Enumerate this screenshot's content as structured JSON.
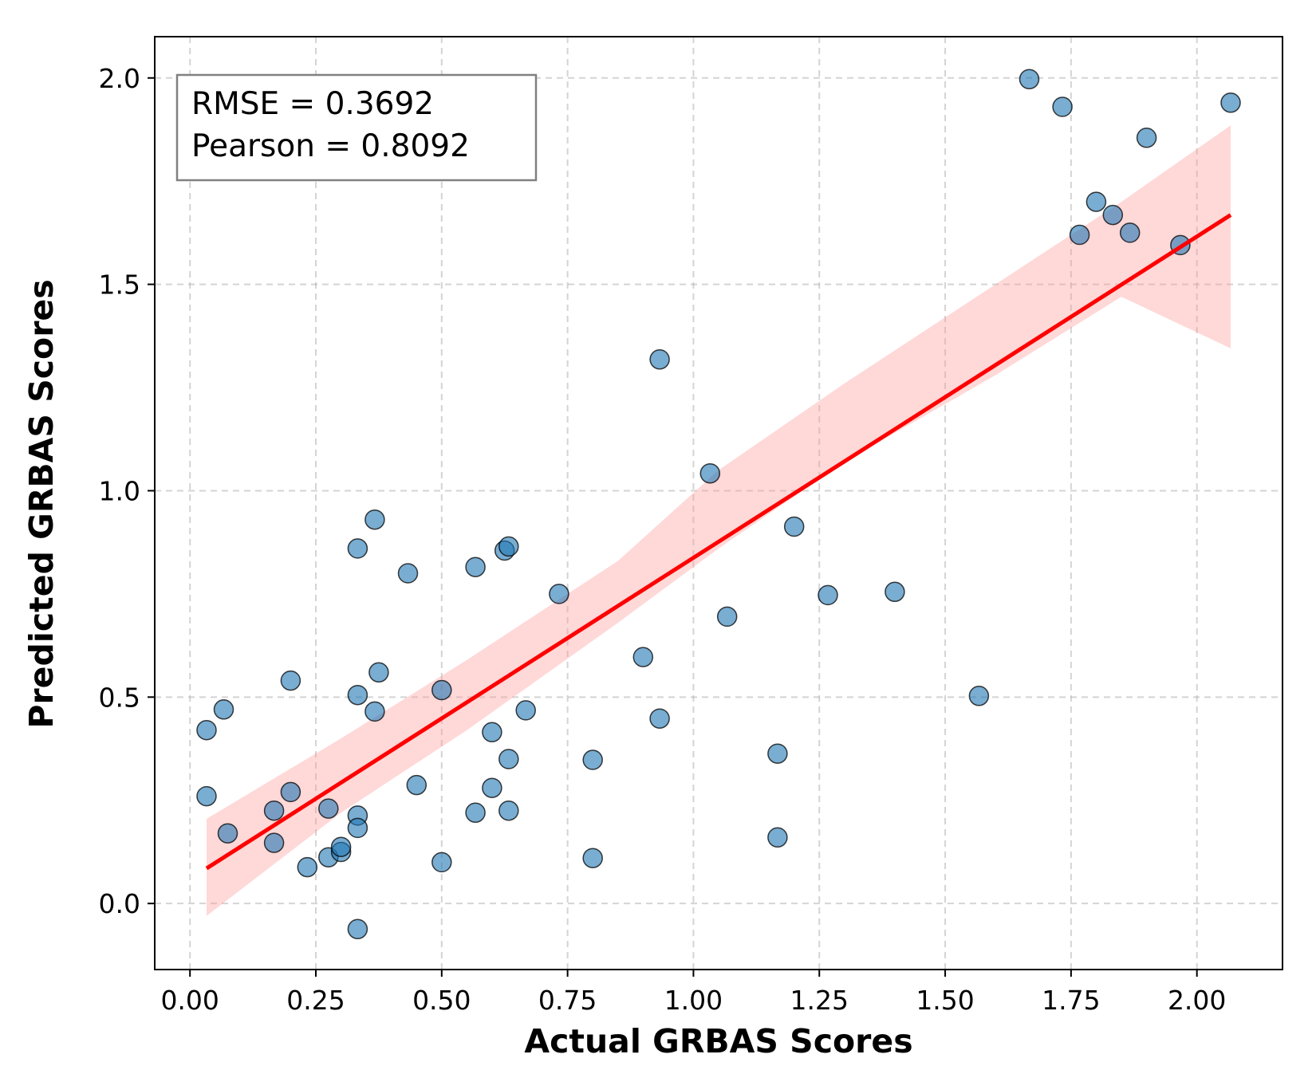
{
  "chart_data": {
    "type": "scatter",
    "xlabel": "Actual GRBAS Scores",
    "ylabel": "Predicted GRBAS Scores",
    "xlim": [
      -0.07,
      2.17
    ],
    "ylim": [
      -0.16,
      2.1
    ],
    "x_ticks": [
      "0.00",
      "0.25",
      "0.50",
      "0.75",
      "1.00",
      "1.25",
      "1.50",
      "1.75",
      "2.00"
    ],
    "x_tick_values": [
      0,
      0.25,
      0.5,
      0.75,
      1.0,
      1.25,
      1.5,
      1.75,
      2.0
    ],
    "y_ticks": [
      "0.0",
      "0.5",
      "1.0",
      "1.5",
      "2.0"
    ],
    "y_tick_values": [
      0,
      0.5,
      1.0,
      1.5,
      2.0
    ],
    "grid": true,
    "annotation": {
      "lines": [
        "RMSE = 0.3692",
        "Pearson = 0.8092"
      ],
      "placement": "top-left"
    },
    "colors": {
      "points": "#1f77b4",
      "fit_line": "#ff0000",
      "confidence_band": "#ff9999"
    },
    "points": [
      {
        "x": 0.033,
        "y": 0.42
      },
      {
        "x": 0.033,
        "y": 0.26
      },
      {
        "x": 0.067,
        "y": 0.47
      },
      {
        "x": 0.075,
        "y": 0.17
      },
      {
        "x": 0.167,
        "y": 0.225
      },
      {
        "x": 0.167,
        "y": 0.147
      },
      {
        "x": 0.2,
        "y": 0.54
      },
      {
        "x": 0.2,
        "y": 0.27
      },
      {
        "x": 0.233,
        "y": 0.088
      },
      {
        "x": 0.275,
        "y": 0.23
      },
      {
        "x": 0.275,
        "y": 0.112
      },
      {
        "x": 0.3,
        "y": 0.125
      },
      {
        "x": 0.3,
        "y": 0.137
      },
      {
        "x": 0.333,
        "y": 0.86
      },
      {
        "x": 0.333,
        "y": 0.505
      },
      {
        "x": 0.333,
        "y": 0.213
      },
      {
        "x": 0.333,
        "y": 0.183
      },
      {
        "x": 0.333,
        "y": -0.062
      },
      {
        "x": 0.367,
        "y": 0.93
      },
      {
        "x": 0.367,
        "y": 0.465
      },
      {
        "x": 0.375,
        "y": 0.56
      },
      {
        "x": 0.433,
        "y": 0.8
      },
      {
        "x": 0.45,
        "y": 0.287
      },
      {
        "x": 0.5,
        "y": 0.517
      },
      {
        "x": 0.5,
        "y": 0.1
      },
      {
        "x": 0.567,
        "y": 0.815
      },
      {
        "x": 0.567,
        "y": 0.22
      },
      {
        "x": 0.6,
        "y": 0.415
      },
      {
        "x": 0.6,
        "y": 0.28
      },
      {
        "x": 0.625,
        "y": 0.855
      },
      {
        "x": 0.633,
        "y": 0.865
      },
      {
        "x": 0.633,
        "y": 0.35
      },
      {
        "x": 0.633,
        "y": 0.225
      },
      {
        "x": 0.667,
        "y": 0.468
      },
      {
        "x": 0.733,
        "y": 0.75
      },
      {
        "x": 0.8,
        "y": 0.348
      },
      {
        "x": 0.8,
        "y": 0.11
      },
      {
        "x": 0.9,
        "y": 0.597
      },
      {
        "x": 0.933,
        "y": 1.318
      },
      {
        "x": 0.933,
        "y": 0.448
      },
      {
        "x": 1.033,
        "y": 1.042
      },
      {
        "x": 1.067,
        "y": 0.695
      },
      {
        "x": 1.167,
        "y": 0.363
      },
      {
        "x": 1.167,
        "y": 0.16
      },
      {
        "x": 1.2,
        "y": 0.913
      },
      {
        "x": 1.267,
        "y": 0.747
      },
      {
        "x": 1.4,
        "y": 0.755
      },
      {
        "x": 1.567,
        "y": 0.503
      },
      {
        "x": 1.667,
        "y": 1.997
      },
      {
        "x": 1.733,
        "y": 1.93
      },
      {
        "x": 1.767,
        "y": 1.62
      },
      {
        "x": 1.8,
        "y": 1.7
      },
      {
        "x": 1.833,
        "y": 1.668
      },
      {
        "x": 1.867,
        "y": 1.625
      },
      {
        "x": 1.9,
        "y": 1.855
      },
      {
        "x": 1.967,
        "y": 1.595
      },
      {
        "x": 2.067,
        "y": 1.94
      }
    ],
    "fit_line": {
      "x": [
        0.033,
        2.067
      ],
      "y": [
        0.085,
        1.668
      ]
    },
    "confidence_band": {
      "x": [
        0.033,
        0.3,
        0.55,
        0.85,
        1.05,
        1.3,
        1.6,
        1.85,
        2.067
      ],
      "upper": [
        0.205,
        0.4,
        0.59,
        0.83,
        1.05,
        1.26,
        1.5,
        1.7,
        1.885
      ],
      "lower": [
        -0.03,
        0.22,
        0.42,
        0.68,
        0.86,
        1.07,
        1.28,
        1.47,
        1.345
      ]
    }
  }
}
